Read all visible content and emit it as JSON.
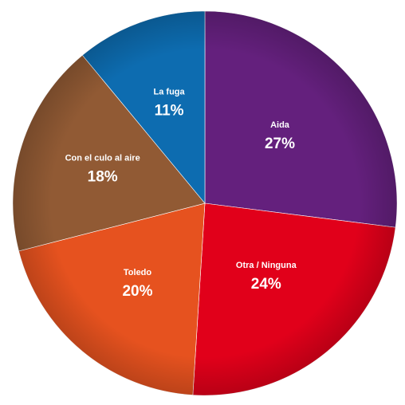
{
  "chart_data": {
    "type": "pie",
    "title": "",
    "slices": [
      {
        "label": "Aida",
        "value": 27,
        "value_label": "27%",
        "color": "#64207d"
      },
      {
        "label": "Otra / Ninguna",
        "value": 24,
        "value_label": "24%",
        "color": "#e1001a"
      },
      {
        "label": "Toledo",
        "value": 20,
        "value_label": "20%",
        "color": "#e6521f"
      },
      {
        "label": "Con el culo al aire",
        "value": 18,
        "value_label": "18%",
        "color": "#915a34"
      },
      {
        "label": "La fuga",
        "value": 11,
        "value_label": "11%",
        "color": "#0d6cb0"
      }
    ],
    "start": "12 o'clock",
    "direction": "clockwise",
    "legend": "none"
  }
}
